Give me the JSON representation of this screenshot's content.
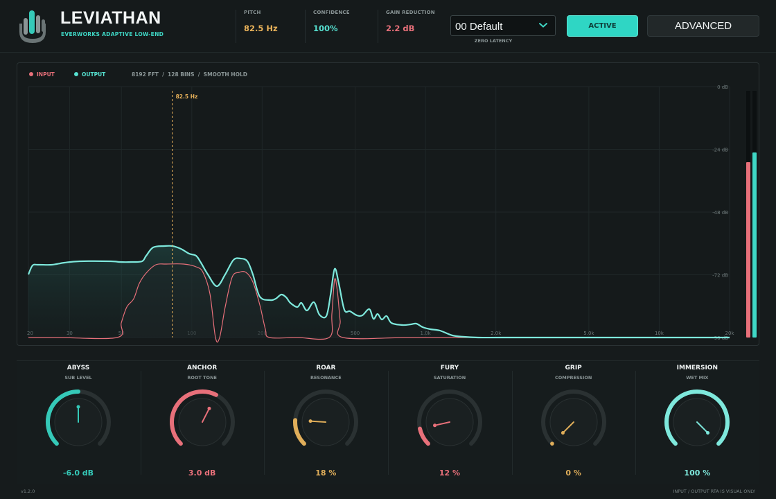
{
  "header": {
    "title": "LEVIATHAN",
    "subtitle": "EVERWORKS ADAPTIVE LOW-END",
    "metrics": [
      {
        "label": "PITCH",
        "value": "82.5 Hz",
        "color": "#e9b25a"
      },
      {
        "label": "CONFIDENCE",
        "value": "100%",
        "color": "#56e0d0"
      },
      {
        "label": "GAIN REDUCTION",
        "value": "2.2 dB",
        "color": "#e8707a"
      }
    ],
    "preset": {
      "value": "00 Default",
      "caption": "ZERO LATENCY"
    },
    "active_label": "ACTIVE",
    "advanced_label": "ADVANCED"
  },
  "spectrum": {
    "legend": {
      "input": "INPUT",
      "output": "OUTPUT"
    },
    "info": "8192 FFT  /  128 BINS  /  SMOOTH HOLD",
    "pitch_marker": {
      "label": "82.5 Hz",
      "freq": 82.5
    },
    "freq_labels": [
      "20",
      "30",
      "50",
      "100",
      "200",
      "500",
      "1.0k",
      "2.0k",
      "5.0k",
      "10k",
      "20k"
    ],
    "freq_values": [
      20,
      30,
      50,
      100,
      200,
      500,
      1000,
      2000,
      5000,
      10000,
      20000
    ],
    "db_labels": [
      "0 dB",
      "-24 dB",
      "-48 dB",
      "-72 dB",
      "-96 dB"
    ],
    "db_values": [
      0,
      -24,
      -48,
      -72,
      -96
    ],
    "meters": {
      "input_level": 0.71,
      "output_level": 0.75
    },
    "colors": {
      "input": "#e8707a",
      "output": "#7ee8dc",
      "marker": "#e9b25a"
    }
  },
  "knobs": [
    {
      "name": "ABYSS",
      "sub": "SUB LEVEL",
      "value": "-6.0 dB",
      "color": "#35c9b8",
      "fraction": 0.5
    },
    {
      "name": "ANCHOR",
      "sub": "ROOT TONE",
      "value": "3.0 dB",
      "color": "#e8707a",
      "fraction": 0.6
    },
    {
      "name": "ROAR",
      "sub": "RESONANCE",
      "value": "18 %",
      "color": "#e0ae5a",
      "fraction": 0.18
    },
    {
      "name": "FURY",
      "sub": "SATURATION",
      "value": "12 %",
      "color": "#e8707a",
      "fraction": 0.12
    },
    {
      "name": "GRIP",
      "sub": "COMPRESSION",
      "value": "0 %",
      "color": "#e0ae5a",
      "fraction": 0.0
    },
    {
      "name": "IMMERSION",
      "sub": "WET MIX",
      "value": "100 %",
      "color": "#7ee8dc",
      "fraction": 1.0
    }
  ],
  "footer": {
    "version": "v1.2.0",
    "note": "INPUT / OUTPUT RTA IS VISUAL ONLY"
  }
}
